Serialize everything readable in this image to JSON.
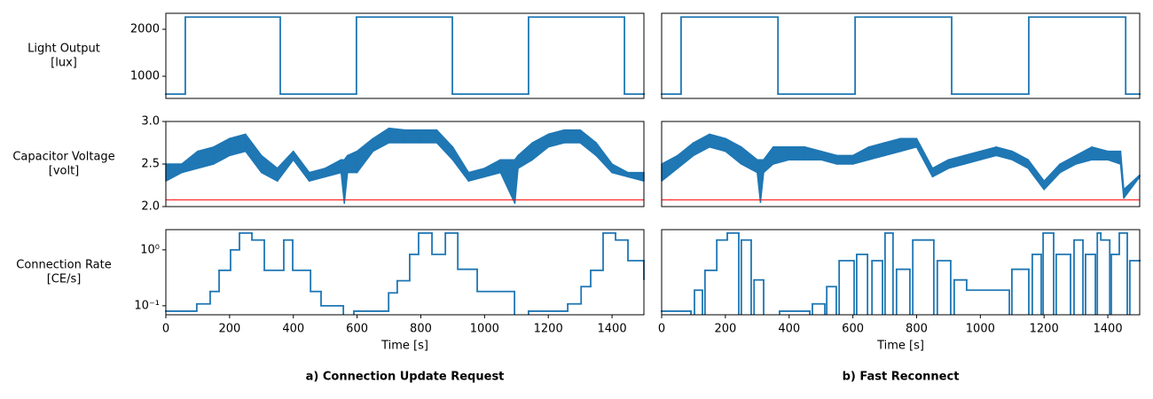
{
  "chart_data": [
    {
      "type": "step",
      "ylabel": [
        "Light Output",
        "[lux]"
      ],
      "color": "#1f77b4",
      "x": [
        0,
        61,
        359,
        598,
        899,
        1138,
        1439,
        1500
      ],
      "values": [
        620,
        2260,
        620,
        2260,
        620,
        2260,
        620,
        620
      ],
      "xlim": [
        0,
        1500
      ],
      "ylim": [
        528,
        2340
      ],
      "yticks": [
        1000,
        2000
      ]
    },
    {
      "type": "step",
      "color": "#1f77b4",
      "x": [
        0,
        61,
        365,
        607,
        910,
        1152,
        1456,
        1500
      ],
      "values": [
        620,
        2260,
        620,
        2260,
        620,
        2260,
        620,
        620
      ],
      "xlim": [
        0,
        1500
      ],
      "ylim": [
        528,
        2340
      ]
    },
    {
      "type": "band",
      "ylabel": [
        "Capacitor Voltage",
        "[volt]"
      ],
      "color": "#1f77b4",
      "x": [
        0,
        50,
        100,
        150,
        200,
        250,
        300,
        350,
        400,
        450,
        500,
        550,
        560,
        570,
        600,
        650,
        700,
        750,
        800,
        850,
        900,
        950,
        1000,
        1050,
        1095,
        1105,
        1150,
        1200,
        1250,
        1300,
        1350,
        1400,
        1450,
        1500
      ],
      "upper": [
        2.5,
        2.5,
        2.65,
        2.7,
        2.8,
        2.85,
        2.6,
        2.45,
        2.65,
        2.4,
        2.45,
        2.55,
        2.55,
        2.6,
        2.65,
        2.8,
        2.92,
        2.9,
        2.9,
        2.9,
        2.7,
        2.4,
        2.45,
        2.55,
        2.55,
        2.6,
        2.75,
        2.85,
        2.9,
        2.9,
        2.75,
        2.5,
        2.4,
        2.4
      ],
      "lower": [
        2.3,
        2.4,
        2.45,
        2.5,
        2.6,
        2.65,
        2.4,
        2.3,
        2.55,
        2.3,
        2.35,
        2.4,
        2.04,
        2.4,
        2.4,
        2.65,
        2.75,
        2.75,
        2.75,
        2.75,
        2.55,
        2.3,
        2.35,
        2.4,
        2.04,
        2.45,
        2.55,
        2.7,
        2.75,
        2.75,
        2.6,
        2.4,
        2.35,
        2.3
      ],
      "threshold": {
        "value": 2.08,
        "color": "#ff0000"
      },
      "xlim": [
        0,
        1500
      ],
      "ylim": [
        2.0,
        3.0
      ],
      "yticks": [
        {
          "value": 2,
          "label": "2.0"
        },
        2.5,
        {
          "value": 3,
          "label": "3.0"
        }
      ]
    },
    {
      "type": "band",
      "color": "#1f77b4",
      "x": [
        0,
        50,
        100,
        150,
        200,
        250,
        300,
        310,
        320,
        350,
        400,
        450,
        500,
        550,
        600,
        650,
        700,
        750,
        800,
        850,
        900,
        950,
        1000,
        1050,
        1100,
        1150,
        1200,
        1250,
        1300,
        1350,
        1400,
        1440,
        1450,
        1500
      ],
      "upper": [
        2.5,
        2.6,
        2.75,
        2.85,
        2.8,
        2.7,
        2.55,
        2.55,
        2.55,
        2.7,
        2.7,
        2.7,
        2.65,
        2.6,
        2.6,
        2.7,
        2.75,
        2.8,
        2.8,
        2.45,
        2.55,
        2.6,
        2.65,
        2.7,
        2.65,
        2.55,
        2.3,
        2.5,
        2.6,
        2.7,
        2.65,
        2.65,
        2.2,
        2.37
      ],
      "lower": [
        2.3,
        2.45,
        2.6,
        2.7,
        2.65,
        2.5,
        2.4,
        2.05,
        2.4,
        2.5,
        2.55,
        2.55,
        2.55,
        2.5,
        2.5,
        2.55,
        2.6,
        2.65,
        2.7,
        2.35,
        2.45,
        2.5,
        2.55,
        2.6,
        2.55,
        2.45,
        2.2,
        2.4,
        2.5,
        2.55,
        2.55,
        2.5,
        2.1,
        2.35
      ],
      "threshold": {
        "value": 2.08,
        "color": "#ff0000"
      },
      "xlim": [
        0,
        1500
      ],
      "ylim": [
        2.0,
        3.0
      ]
    },
    {
      "type": "step",
      "ylabel": [
        "Connection Rate",
        "[CE/s]"
      ],
      "xlabel": "Time [s]",
      "caption": "a) Connection Update Request",
      "color": "#1f77b4",
      "yscale": "log",
      "x": [
        0,
        97,
        139,
        167,
        203,
        231,
        270,
        309,
        370,
        398,
        454,
        487,
        557,
        590,
        699,
        726,
        765,
        793,
        835,
        877,
        916,
        977,
        1094,
        1138,
        1261,
        1303,
        1333,
        1372,
        1411,
        1450,
        1500
      ],
      "values": [
        0.08,
        0.108,
        0.18,
        0.43,
        1.0,
        2.0,
        1.5,
        0.43,
        1.5,
        0.43,
        0.18,
        0.1,
        null,
        0.08,
        0.17,
        0.28,
        0.83,
        2.0,
        0.83,
        2.0,
        0.45,
        0.18,
        null,
        0.08,
        0.108,
        0.22,
        0.43,
        2.0,
        1.5,
        0.64,
        0.3
      ],
      "xlim": [
        0,
        1500
      ],
      "ylim": [
        0.069,
        2.3
      ],
      "xticks": [
        0,
        200,
        400,
        600,
        800,
        1000,
        1200,
        1400
      ],
      "yticks": [
        {
          "value": 1,
          "label": "10⁰"
        },
        {
          "value": 0.1,
          "label": "10⁻¹"
        }
      ]
    },
    {
      "type": "step",
      "xlabel": "Time [s]",
      "caption": "b) Fast Reconnect",
      "color": "#1f77b4",
      "yscale": "log",
      "x": [
        0,
        92,
        103,
        128,
        136,
        173,
        206,
        242,
        250,
        281,
        290,
        320,
        370,
        465,
        473,
        512,
        518,
        548,
        557,
        604,
        612,
        646,
        660,
        693,
        701,
        726,
        737,
        779,
        788,
        854,
        865,
        907,
        918,
        957,
        1091,
        1099,
        1152,
        1163,
        1191,
        1197,
        1230,
        1238,
        1283,
        1294,
        1322,
        1330,
        1361,
        1367,
        1378,
        1406,
        1411,
        1436,
        1461,
        1469,
        1500
      ],
      "values": [
        0.08,
        null,
        0.19,
        null,
        0.43,
        1.5,
        2.0,
        null,
        1.5,
        null,
        0.29,
        null,
        0.08,
        null,
        0.108,
        null,
        0.22,
        null,
        0.64,
        null,
        0.83,
        null,
        0.64,
        null,
        2.0,
        null,
        0.45,
        null,
        1.5,
        null,
        0.64,
        null,
        0.29,
        0.19,
        null,
        0.45,
        null,
        0.83,
        null,
        2.0,
        null,
        0.83,
        null,
        1.5,
        null,
        0.83,
        null,
        2.0,
        1.5,
        null,
        0.83,
        2.0,
        null,
        0.64,
        0.64
      ],
      "xlim": [
        0,
        1500
      ],
      "ylim": [
        0.069,
        2.3
      ],
      "xticks": [
        0,
        200,
        400,
        600,
        800,
        1000,
        1200,
        1400
      ]
    }
  ]
}
